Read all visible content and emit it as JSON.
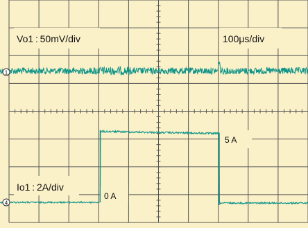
{
  "chart_data": {
    "type": "line",
    "time_per_div_label": "100μs/div",
    "x_unit": "μs",
    "xlim": [
      0,
      1000
    ],
    "grid": true,
    "traces": [
      {
        "channel": "1",
        "label": "Vo1 : 50mV/div",
        "scale_per_div": "50mV/div",
        "baseline_div": 2.0,
        "noise_div": 0.12,
        "spike": {
          "time_us": 703,
          "height_div": -0.45
        },
        "color": "#0e9488"
      },
      {
        "channel": "4",
        "label": "Io1 : 2A/div",
        "scale_per_div": "2A/div",
        "low_value_A": 0,
        "high_value_A": 5,
        "step_up_us": 305,
        "step_down_us": 703,
        "low_label": "0 A",
        "high_label": "5 A",
        "color": "#0e9488"
      }
    ],
    "background": "#fbf1c9",
    "grid_color": "#555555"
  },
  "labels": {
    "ch1_name": "Vo1",
    "ch1_scale": " : 50mV/div",
    "ch4_name": "Io1",
    "ch4_scale": " : 2A/div",
    "timebase": "100μs/div",
    "low_level": "0 A",
    "high_level": "5 A",
    "marker1": "1",
    "marker4": "4"
  }
}
